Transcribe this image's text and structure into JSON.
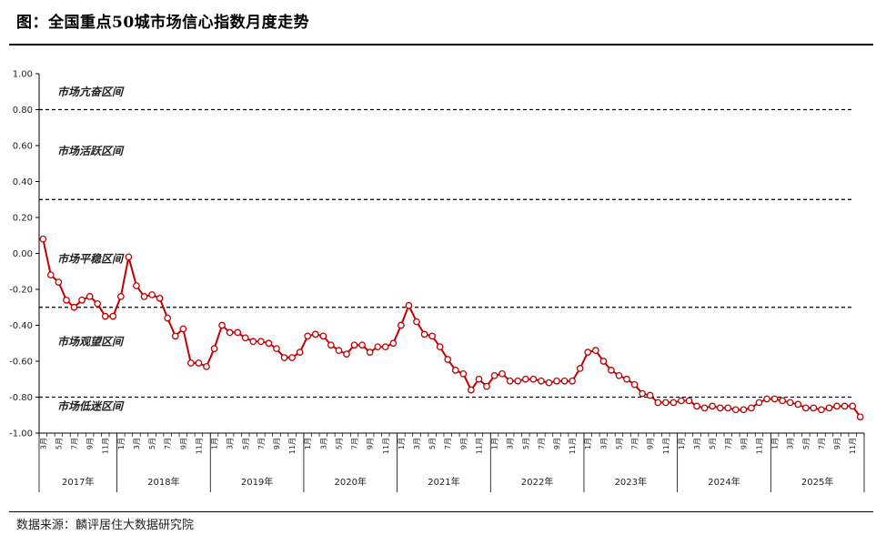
{
  "header": {
    "title": "图：全国重点50城市场信心指数月度走势"
  },
  "footer": {
    "source": "数据来源：麟评居住大数据研究院"
  },
  "chart_data": {
    "type": "line",
    "title": "全国重点50城市场信心指数月度走势",
    "ylim": [
      -1.0,
      1.0
    ],
    "yticks": [
      "1.00",
      "0.80",
      "0.60",
      "0.40",
      "0.20",
      "0.00",
      "-0.20",
      "-0.40",
      "-0.60",
      "-0.80",
      "-1.00"
    ],
    "ytick_values": [
      1.0,
      0.8,
      0.6,
      0.4,
      0.2,
      0.0,
      -0.2,
      -0.4,
      -0.6,
      -0.8,
      -1.0
    ],
    "threshold_lines": [
      0.8,
      0.3,
      -0.3,
      -0.8
    ],
    "zones": [
      {
        "label": "市场亢奋区间",
        "y": 0.9
      },
      {
        "label": "市场活跃区间",
        "y": 0.57
      },
      {
        "label": "市场平稳区间",
        "y": -0.03
      },
      {
        "label": "市场观望区间",
        "y": -0.49
      },
      {
        "label": "市场低迷区间",
        "y": -0.85
      }
    ],
    "start": {
      "year": 2017,
      "month": 3
    },
    "month_label_suffix": "月",
    "year_labels": [
      "2017年",
      "2018年",
      "2019年",
      "2020年",
      "2021年",
      "2022年",
      "2023年",
      "2024年",
      "2025年"
    ],
    "series": [
      {
        "color": "#c00000",
        "values": [
          0.08,
          -0.12,
          -0.16,
          -0.26,
          -0.3,
          -0.26,
          -0.24,
          -0.28,
          -0.35,
          -0.35,
          -0.24,
          -0.02,
          -0.18,
          -0.24,
          -0.23,
          -0.25,
          -0.36,
          -0.46,
          -0.42,
          -0.61,
          -0.61,
          -0.63,
          -0.53,
          -0.4,
          -0.44,
          -0.44,
          -0.47,
          -0.49,
          -0.49,
          -0.5,
          -0.53,
          -0.58,
          -0.58,
          -0.55,
          -0.46,
          -0.45,
          -0.46,
          -0.51,
          -0.54,
          -0.56,
          -0.51,
          -0.51,
          -0.55,
          -0.52,
          -0.52,
          -0.5,
          -0.4,
          -0.29,
          -0.38,
          -0.45,
          -0.46,
          -0.52,
          -0.59,
          -0.65,
          -0.67,
          -0.76,
          -0.7,
          -0.74,
          -0.68,
          -0.67,
          -0.71,
          -0.71,
          -0.7,
          -0.7,
          -0.71,
          -0.72,
          -0.71,
          -0.71,
          -0.71,
          -0.64,
          -0.55,
          -0.54,
          -0.6,
          -0.65,
          -0.68,
          -0.7,
          -0.73,
          -0.78,
          -0.79,
          -0.83,
          -0.83,
          -0.83,
          -0.82,
          -0.82,
          -0.85,
          -0.86,
          -0.85,
          -0.86,
          -0.86,
          -0.87,
          -0.87,
          -0.86,
          -0.83,
          -0.81,
          -0.81,
          -0.82,
          -0.83,
          -0.84,
          -0.86,
          -0.86,
          -0.87,
          -0.86,
          -0.85,
          -0.85,
          -0.85,
          -0.91
        ]
      }
    ]
  }
}
